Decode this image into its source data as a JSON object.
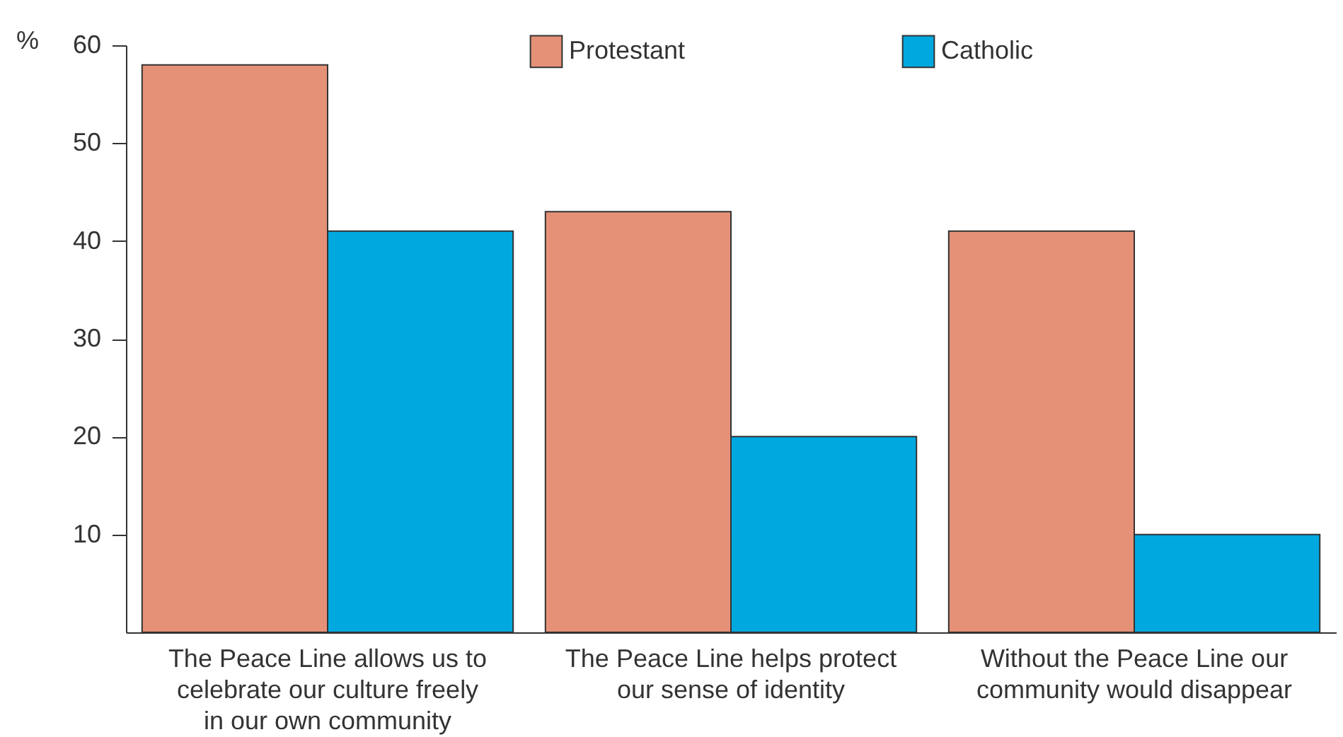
{
  "chart_data": {
    "type": "bar",
    "ylabel": "%",
    "categories": [
      "The Peace Line allows us to celebrate our culture freely in our own community",
      "The Peace Line helps protect our sense of identity",
      "Without the Peace Line our community would disappear"
    ],
    "series": [
      {
        "name": "Protestant",
        "color": "#e59178",
        "values": [
          58,
          43,
          41
        ]
      },
      {
        "name": "Catholic",
        "color": "#00a8e0",
        "values": [
          41,
          20,
          10
        ]
      }
    ],
    "ylim": [
      0,
      60
    ],
    "yticks": [
      10,
      20,
      30,
      40,
      50,
      60
    ],
    "grid": false,
    "legend": "top"
  }
}
